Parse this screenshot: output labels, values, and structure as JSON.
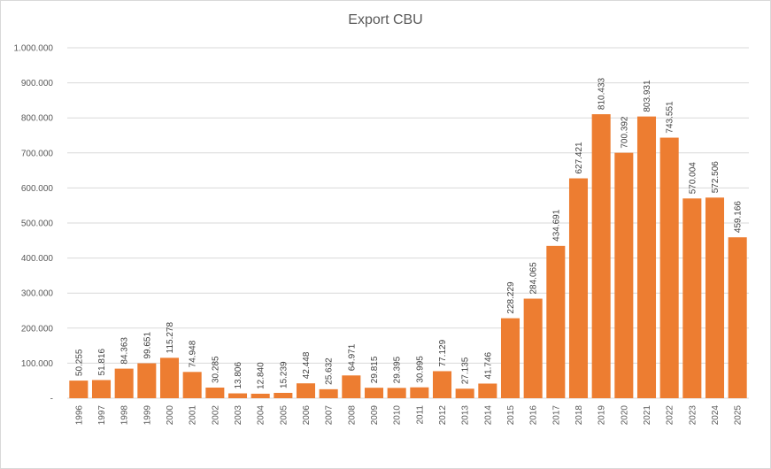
{
  "chart_data": {
    "type": "bar",
    "title": "Export CBU",
    "xlabel": "",
    "ylabel": "",
    "ylim": [
      0,
      1000000
    ],
    "grid": true,
    "bar_color": "#ED7D31",
    "grid_color": "#d9d9d9",
    "y_ticks": [
      {
        "value": 0,
        "label": "-"
      },
      {
        "value": 100000,
        "label": "100.000"
      },
      {
        "value": 200000,
        "label": "200.000"
      },
      {
        "value": 300000,
        "label": "300.000"
      },
      {
        "value": 400000,
        "label": "400.000"
      },
      {
        "value": 500000,
        "label": "500.000"
      },
      {
        "value": 600000,
        "label": "600.000"
      },
      {
        "value": 700000,
        "label": "700.000"
      },
      {
        "value": 800000,
        "label": "800.000"
      },
      {
        "value": 900000,
        "label": "900.000"
      },
      {
        "value": 1000000,
        "label": "1.000.000"
      }
    ],
    "categories": [
      "1996",
      "1997",
      "1998",
      "1999",
      "2000",
      "2001",
      "2002",
      "2003",
      "2004",
      "2005",
      "2006",
      "2007",
      "2008",
      "2009",
      "2010",
      "2011",
      "2012",
      "2013",
      "2014",
      "2015",
      "2016",
      "2017",
      "2018",
      "2019",
      "2020",
      "2021",
      "2022",
      "2023",
      "2024",
      "2025"
    ],
    "values": [
      50255,
      51816,
      84363,
      99651,
      115278,
      74948,
      30285,
      13806,
      12840,
      15239,
      42448,
      25632,
      64971,
      29815,
      29395,
      30995,
      77129,
      27135,
      41746,
      228229,
      284065,
      434691,
      627421,
      810433,
      700392,
      803931,
      743551,
      570004,
      572506,
      459166
    ],
    "data_labels": [
      "50.255",
      "51.816",
      "84.363",
      "99.651",
      "115.278",
      "74.948",
      "30.285",
      "13.806",
      "12.840",
      "15.239",
      "42.448",
      "25.632",
      "64.971",
      "29.815",
      "29.395",
      "30.995",
      "77.129",
      "27.135",
      "41.746",
      "228.229",
      "284.065",
      "434.691",
      "627.421",
      "810.433",
      "700.392",
      "803.931",
      "743.551",
      "570.004",
      "572.506",
      "459.166"
    ]
  }
}
